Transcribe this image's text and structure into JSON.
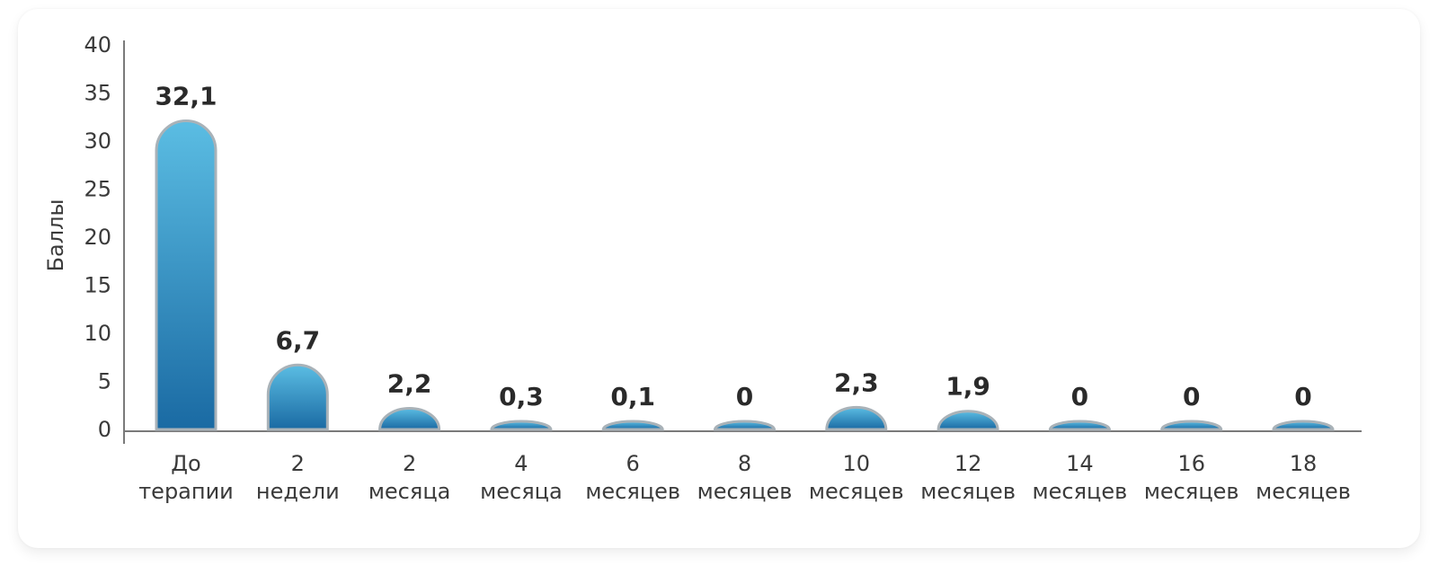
{
  "chart_data": {
    "type": "bar",
    "ylabel": "Баллы",
    "ylim": [
      0,
      40
    ],
    "yticks": [
      "0",
      "5",
      "10",
      "15",
      "20",
      "25",
      "30",
      "35",
      "40"
    ],
    "categories": [
      [
        "До",
        "терапии"
      ],
      [
        "2",
        "недели"
      ],
      [
        "2",
        "месяца"
      ],
      [
        "4",
        "месяца"
      ],
      [
        "6",
        "месяцев"
      ],
      [
        "8",
        "месяцев"
      ],
      [
        "10",
        "месяцев"
      ],
      [
        "12",
        "месяцев"
      ],
      [
        "14",
        "месяцев"
      ],
      [
        "16",
        "месяцев"
      ],
      [
        "18",
        "месяцев"
      ]
    ],
    "values": [
      32.1,
      6.7,
      2.2,
      0.3,
      0.1,
      0,
      2.3,
      1.9,
      0,
      0,
      0
    ],
    "value_labels": [
      "32,1",
      "6,7",
      "2,2",
      "0,3",
      "0,1",
      "0",
      "2,3",
      "1,9",
      "0",
      "0",
      "0"
    ],
    "grid": false,
    "colors": {
      "bar_top": "#5bbde3",
      "bar_bottom": "#1a6aa3",
      "bar_border": "#a9b2b8",
      "axis": "#7a7a7a"
    }
  }
}
